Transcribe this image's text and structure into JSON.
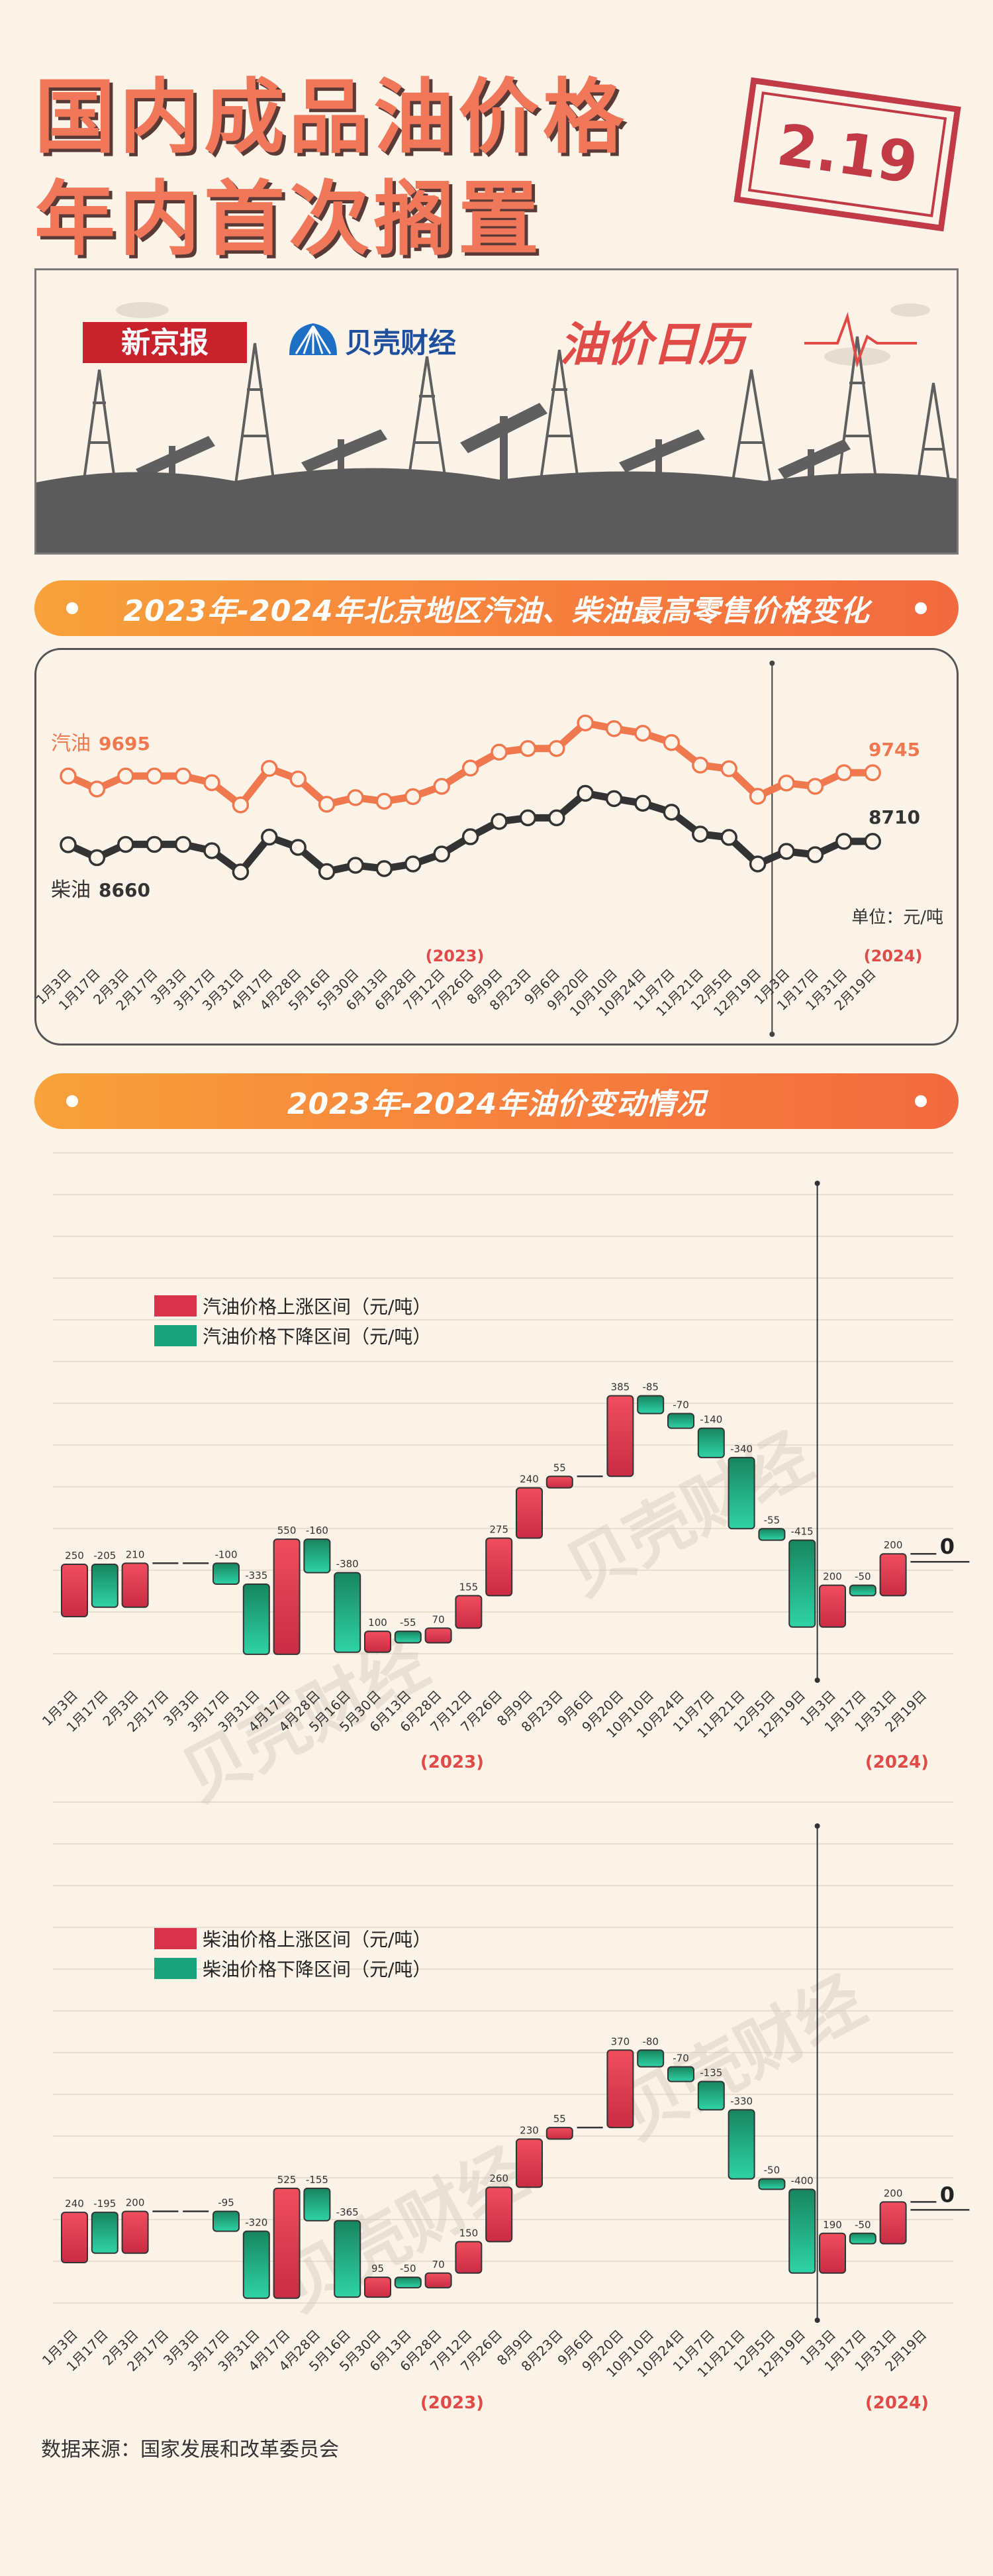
{
  "header": {
    "title_line1": "国内成品油价格",
    "title_line2": "年内首次搁置",
    "stamp_date": "2.19"
  },
  "banner": {
    "brand1": "新京报",
    "brand2": "贝壳财经",
    "column": "油价日历"
  },
  "section1_title": "2023年-2024年北京地区汽油、柴油最高零售价格变化",
  "section2_title": "2023年-2024年油价变动情况",
  "year_labels": [
    "(2023)",
    "(2024)"
  ],
  "watermark": "贝壳财经",
  "dates": [
    "1月3日",
    "1月17日",
    "2月3日",
    "2月17日",
    "3月3日",
    "3月17日",
    "3月31日",
    "4月17日",
    "4月28日",
    "5月16日",
    "5月30日",
    "6月13日",
    "6月28日",
    "7月12日",
    "7月26日",
    "8月9日",
    "8月23日",
    "9月6日",
    "9月20日",
    "10月10日",
    "10月24日",
    "11月7日",
    "11月21日",
    "12月5日",
    "12月19日",
    "1月3日",
    "1月17日",
    "1月31日",
    "2月19日"
  ],
  "line_chart": {
    "unit_label": "单位：元/吨",
    "gasoline": {
      "name": "汽油",
      "start_label": "9695",
      "end_label": "9745",
      "color": "#f0784e"
    },
    "diesel": {
      "name": "柴油",
      "start_label": "8660",
      "end_label": "8710",
      "color": "#333333"
    }
  },
  "waterfall_gasoline": {
    "legend_up": "汽油价格上涨区间（元/吨）",
    "legend_down": "汽油价格下降区间（元/吨）",
    "final_label": "0"
  },
  "waterfall_diesel": {
    "legend_up": "柴油价格上涨区间（元/吨）",
    "legend_down": "柴油价格下降区间（元/吨）",
    "final_label": "0"
  },
  "source": "数据来源：国家发展和改革委员会",
  "colors": {
    "up": "#d8334a",
    "down": "#1aa37a",
    "accent": "#f26a3f"
  },
  "chart_data": [
    {
      "type": "line",
      "x": [
        "1月3日",
        "1月17日",
        "2月3日",
        "2月17日",
        "3月3日",
        "3月17日",
        "3月31日",
        "4月17日",
        "4月28日",
        "5月16日",
        "5月30日",
        "6月13日",
        "6月28日",
        "7月12日",
        "7月26日",
        "8月9日",
        "8月23日",
        "9月6日",
        "9月20日",
        "10月10日",
        "10月24日",
        "11月7日",
        "11月21日",
        "12月5日",
        "12月19日",
        "1月3日",
        "1月17日",
        "1月31日",
        "2月19日"
      ],
      "series": [
        {
          "name": "汽油",
          "values": [
            9695,
            9500,
            9695,
            9695,
            9695,
            9595,
            9260,
            9810,
            9650,
            9270,
            9370,
            9315,
            9385,
            9540,
            9815,
            10055,
            10110,
            10110,
            10495,
            10410,
            10340,
            10200,
            9860,
            9805,
            9390,
            9590,
            9540,
            9745,
            9745
          ]
        },
        {
          "name": "柴油",
          "values": [
            8660,
            8465,
            8665,
            8665,
            8665,
            8570,
            8250,
            8775,
            8620,
            8255,
            8350,
            8300,
            8370,
            8520,
            8780,
            9010,
            9065,
            9065,
            9435,
            9355,
            9285,
            9150,
            8820,
            8770,
            8370,
            8560,
            8510,
            8710,
            8710
          ]
        }
      ],
      "ylabel": "单位：元/吨"
    },
    {
      "type": "bar",
      "name": "汽油价格",
      "categories": [
        "1月3日",
        "1月17日",
        "2月3日",
        "2月17日",
        "3月3日",
        "3月17日",
        "3月31日",
        "4月17日",
        "4月28日",
        "5月16日",
        "5月30日",
        "6月13日",
        "6月28日",
        "7月12日",
        "7月26日",
        "8月9日",
        "8月23日",
        "9月6日",
        "9月20日",
        "10月10日",
        "10月24日",
        "11月7日",
        "11月21日",
        "12月5日",
        "12月19日",
        "1月3日",
        "1月17日",
        "1月31日",
        "2月19日"
      ],
      "values": [
        250,
        -205,
        210,
        0,
        0,
        -100,
        -335,
        550,
        -160,
        -380,
        100,
        -55,
        70,
        155,
        275,
        240,
        55,
        0,
        385,
        -85,
        -70,
        -140,
        -340,
        -55,
        -415,
        200,
        -50,
        200,
        0
      ],
      "labels": [
        "250",
        "-205",
        "210",
        "",
        "",
        "-100",
        "-335",
        "550",
        "-160",
        "-380",
        "100",
        "-55",
        "70",
        "155",
        "275",
        "240",
        "55",
        "",
        "385",
        "-85",
        "-70",
        "-140",
        "-340",
        "-55",
        "-415",
        "200",
        "-50",
        "200",
        "0"
      ],
      "series": [
        {
          "name": "汽油价格上涨区间（元/吨）"
        },
        {
          "name": "汽油价格下降区间（元/吨）"
        }
      ]
    },
    {
      "type": "bar",
      "name": "柴油价格",
      "categories": [
        "1月3日",
        "1月17日",
        "2月3日",
        "2月17日",
        "3月3日",
        "3月17日",
        "3月31日",
        "4月17日",
        "4月28日",
        "5月16日",
        "5月30日",
        "6月13日",
        "6月28日",
        "7月12日",
        "7月26日",
        "8月9日",
        "8月23日",
        "9月6日",
        "9月20日",
        "10月10日",
        "10月24日",
        "11月7日",
        "11月21日",
        "12月5日",
        "12月19日",
        "1月3日",
        "1月17日",
        "1月31日",
        "2月19日"
      ],
      "values": [
        240,
        -195,
        200,
        0,
        0,
        -95,
        -320,
        525,
        -155,
        -365,
        95,
        -50,
        70,
        150,
        260,
        230,
        55,
        0,
        370,
        -80,
        -70,
        -135,
        -330,
        -50,
        -400,
        190,
        -50,
        200,
        0
      ],
      "labels": [
        "240",
        "-195",
        "200",
        "",
        "",
        "-95",
        "-320",
        "525",
        "-155",
        "-365",
        "95",
        "-50",
        "70",
        "150",
        "260",
        "230",
        "55",
        "",
        "370",
        "-80",
        "-70",
        "-135",
        "-330",
        "-50",
        "-400",
        "190",
        "-50",
        "200",
        "0"
      ],
      "series": [
        {
          "name": "柴油价格上涨区间（元/吨）"
        },
        {
          "name": "柴油价格下降区间（元/吨）"
        }
      ]
    }
  ]
}
